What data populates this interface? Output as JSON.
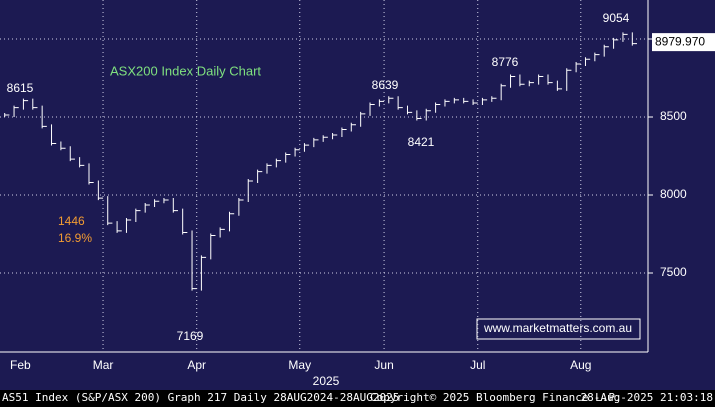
{
  "chart_data": {
    "type": "step",
    "title": "ASX200 Index Daily Chart",
    "year": "2025",
    "watermark": "www.marketmatters.com.au",
    "categories": [
      "Feb",
      null,
      null,
      null,
      null,
      null,
      null,
      null,
      null,
      null,
      null,
      "Mar",
      null,
      null,
      null,
      null,
      null,
      null,
      null,
      null,
      null,
      "Apr",
      null,
      null,
      null,
      null,
      null,
      null,
      null,
      null,
      null,
      null,
      "May",
      null,
      null,
      null,
      null,
      null,
      null,
      null,
      null,
      "Jun",
      null,
      null,
      null,
      null,
      null,
      null,
      null,
      null,
      null,
      "Jul",
      null,
      null,
      null,
      null,
      null,
      null,
      null,
      null,
      null,
      null,
      "Aug",
      null,
      null,
      null,
      null,
      null
    ],
    "values": [
      8513,
      8560,
      8605,
      8560,
      8440,
      8330,
      8300,
      8230,
      8190,
      8080,
      7980,
      7820,
      7770,
      7840,
      7900,
      7936,
      7960,
      7968,
      7900,
      7760,
      7400,
      7600,
      7740,
      7780,
      7880,
      7968,
      8090,
      8150,
      8190,
      8220,
      8260,
      8290,
      8320,
      8353,
      8370,
      8385,
      8420,
      8450,
      8520,
      8580,
      8600,
      8620,
      8560,
      8530,
      8490,
      8540,
      8580,
      8600,
      8610,
      8600,
      8590,
      8610,
      8620,
      8700,
      8760,
      8710,
      8720,
      8760,
      8720,
      8680,
      8800,
      8840,
      8870,
      8900,
      8950,
      8994,
      9030,
      8970
    ],
    "color": "#ffffff",
    "ylim": [
      7000,
      9250
    ],
    "yticks": [
      7500,
      8000,
      8500,
      9000
    ],
    "grid": true,
    "last_price": {
      "value": 8979.97,
      "label": "8979.970"
    },
    "peak_labels": [
      "8615",
      "8639",
      "8421",
      "8776",
      "9054",
      "7169"
    ],
    "drawdown": {
      "points": "1446",
      "percent": "16.9%"
    },
    "footer": {
      "left": "AS51 Index (S&P/ASX 200) Graph 217  Daily 28AUG2024-28AUG2025",
      "center": "Copyright© 2025 Bloomberg Finance L.P.",
      "right": "28-Aug-2025 21:03:18"
    }
  }
}
